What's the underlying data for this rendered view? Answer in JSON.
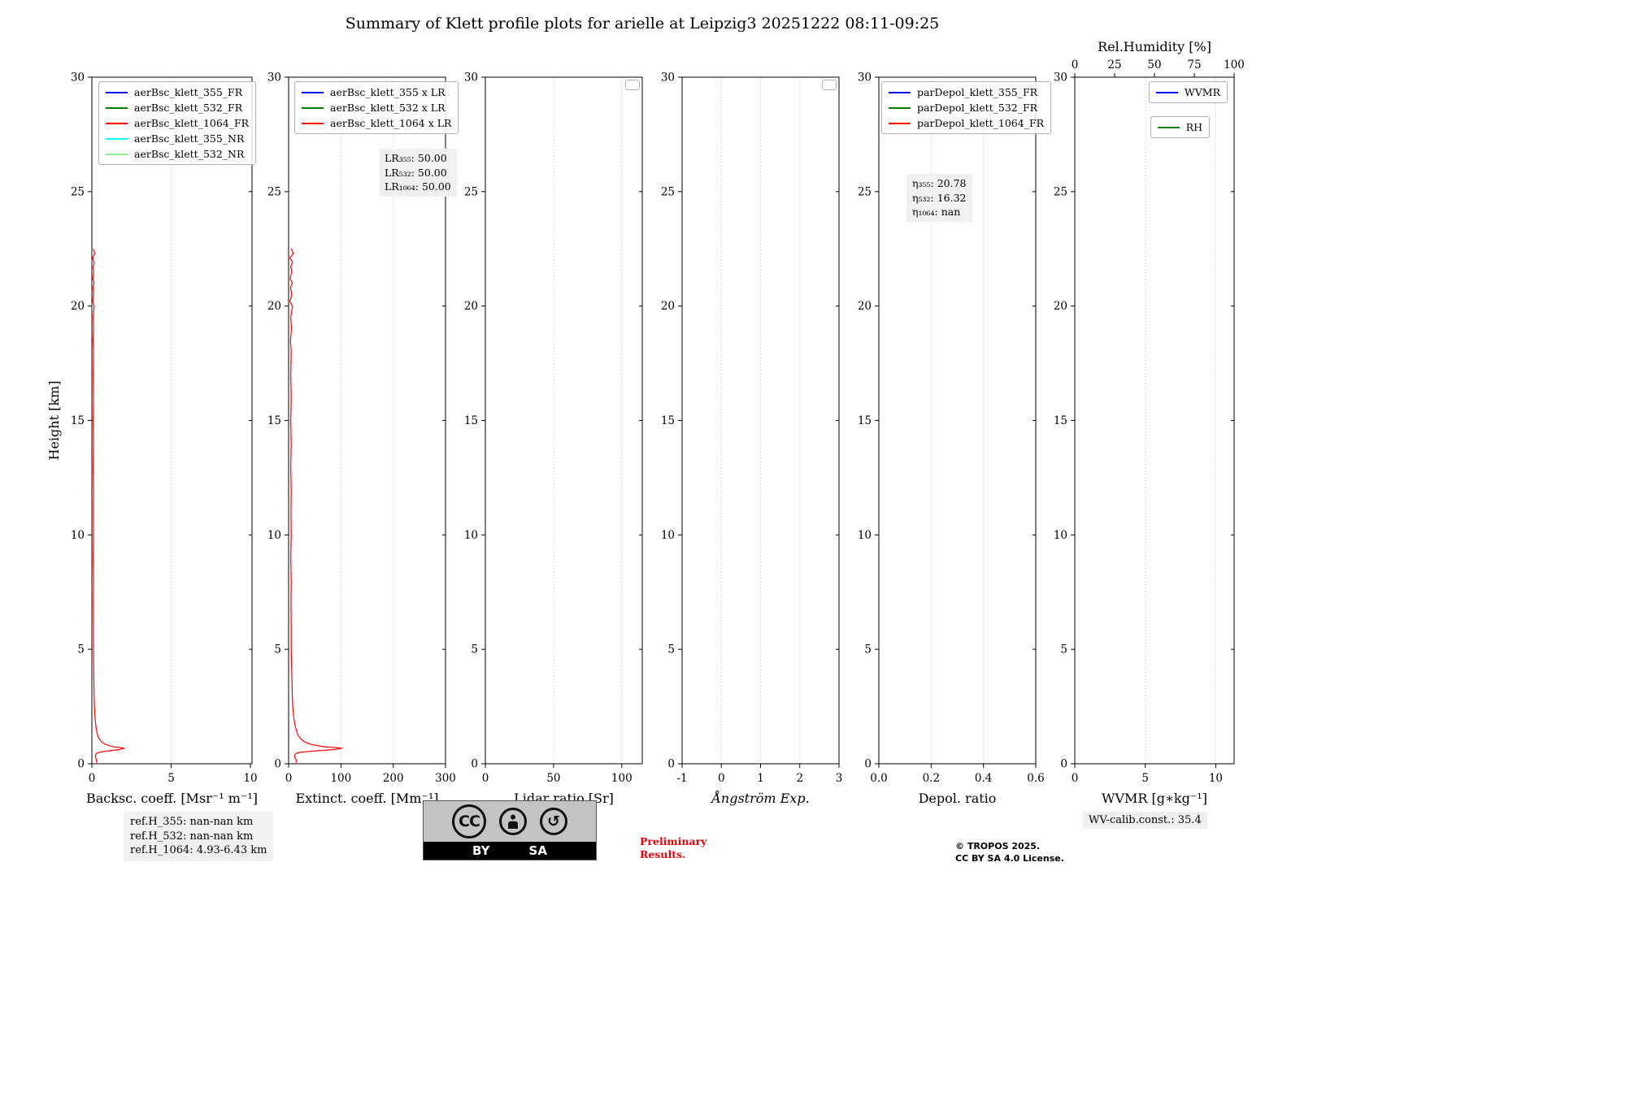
{
  "title": "Summary of Klett profile plots for arielle at Leipzig3 20251222 08:11-09:25",
  "footer": {
    "ref_h_355": "ref.H_355: nan-nan km",
    "ref_h_532": "ref.H_532: nan-nan km",
    "ref_h_1064": "ref.H_1064: 4.93-6.43 km",
    "preliminary_line1": "Preliminary",
    "preliminary_line2": "Results.",
    "copyright_line1": "© TROPOS 2025.",
    "copyright_line2": "CC BY SA 4.0 License.",
    "wv_calib": "WV-calib.const.: 35.4",
    "cc_badge": {
      "cc": "CC",
      "by": "BY",
      "sa": "SA"
    }
  },
  "chart_data": [
    {
      "type": "line",
      "xlabel": "Backsc. coeff. [Msr⁻¹ m⁻¹]",
      "ylabel": "Height [km]",
      "xlim": [
        0,
        10.1
      ],
      "ylim": [
        0,
        30
      ],
      "xticks": [
        0,
        5,
        10
      ],
      "xtick_labels": [
        "0",
        "5",
        "10"
      ],
      "yticks": [
        0,
        5,
        10,
        15,
        20,
        25,
        30
      ],
      "grid": true,
      "legend_boxes": [
        {
          "position": "top-left",
          "entries": [
            {
              "label": "aerBsc_klett_355_FR",
              "color": "#0000ff"
            },
            {
              "label": "aerBsc_klett_532_FR",
              "color": "#008000"
            },
            {
              "label": "aerBsc_klett_1064_FR",
              "color": "#ff0000"
            },
            {
              "label": "aerBsc_klett_355_NR",
              "color": "#00ffff"
            },
            {
              "label": "aerBsc_klett_532_NR",
              "color": "#90ee90"
            }
          ]
        }
      ],
      "series": [
        {
          "name": "aerBsc_klett_1064_FR",
          "color": "#ff0000",
          "points": [
            [
              0.1,
              22.5
            ],
            [
              0.18,
              22.3
            ],
            [
              0.05,
              22.1
            ],
            [
              0.15,
              21.9
            ],
            [
              0.08,
              21.7
            ],
            [
              0.12,
              21.5
            ],
            [
              0.06,
              21.2
            ],
            [
              0.14,
              21.0
            ],
            [
              0.07,
              20.8
            ],
            [
              0.12,
              20.5
            ],
            [
              0.05,
              20.2
            ],
            [
              0.15,
              20.0
            ],
            [
              0.08,
              19.5
            ],
            [
              0.11,
              19.0
            ],
            [
              0.07,
              18.5
            ],
            [
              0.1,
              18.0
            ],
            [
              0.08,
              17.0
            ],
            [
              0.1,
              16.0
            ],
            [
              0.08,
              15.0
            ],
            [
              0.1,
              14.0
            ],
            [
              0.08,
              13.0
            ],
            [
              0.1,
              12.0
            ],
            [
              0.09,
              11.0
            ],
            [
              0.1,
              10.0
            ],
            [
              0.08,
              9.0
            ],
            [
              0.1,
              8.0
            ],
            [
              0.09,
              7.0
            ],
            [
              0.1,
              6.0
            ],
            [
              0.1,
              5.0
            ],
            [
              0.12,
              4.0
            ],
            [
              0.14,
              3.0
            ],
            [
              0.16,
              2.5
            ],
            [
              0.2,
              2.0
            ],
            [
              0.26,
              1.6
            ],
            [
              0.34,
              1.3
            ],
            [
              0.45,
              1.1
            ],
            [
              0.62,
              0.95
            ],
            [
              0.85,
              0.85
            ],
            [
              1.3,
              0.75
            ],
            [
              2.05,
              0.68
            ],
            [
              1.75,
              0.62
            ],
            [
              0.9,
              0.55
            ],
            [
              0.45,
              0.5
            ],
            [
              0.28,
              0.45
            ],
            [
              0.22,
              0.35
            ],
            [
              0.25,
              0.25
            ],
            [
              0.3,
              0.15
            ],
            [
              0.28,
              0.05
            ]
          ]
        }
      ]
    },
    {
      "type": "line",
      "xlabel": "Extinct. coeff. [Mm⁻¹]",
      "xlim": [
        0,
        300
      ],
      "ylim": [
        0,
        30
      ],
      "xticks": [
        0,
        100,
        200,
        300
      ],
      "xtick_labels": [
        "0",
        "100",
        "200",
        "300"
      ],
      "yticks": [
        0,
        5,
        10,
        15,
        20,
        25,
        30
      ],
      "grid": true,
      "legend_boxes": [
        {
          "position": "top-left",
          "entries": [
            {
              "label": "aerBsc_klett_355 x LR",
              "color": "#0000ff"
            },
            {
              "label": "aerBsc_klett_532 x LR",
              "color": "#008000"
            },
            {
              "label": "aerBsc_klett_1064 x LR",
              "color": "#ff0000"
            }
          ]
        }
      ],
      "annotation": {
        "lines": [
          "LR₃₅₅: 50.00",
          "LR₅₃₂: 50.00",
          "LR₁₀₆₄: 50.00"
        ]
      },
      "series": [
        {
          "name": "aerBsc_klett_1064 x LR",
          "color": "#ff0000",
          "points": [
            [
              5,
              22.5
            ],
            [
              9,
              22.3
            ],
            [
              2.5,
              22.1
            ],
            [
              7.5,
              21.9
            ],
            [
              4,
              21.7
            ],
            [
              6,
              21.5
            ],
            [
              3,
              21.2
            ],
            [
              7,
              21.0
            ],
            [
              3.5,
              20.8
            ],
            [
              6,
              20.5
            ],
            [
              2.5,
              20.2
            ],
            [
              7.5,
              20.0
            ],
            [
              4,
              19.5
            ],
            [
              5.5,
              19.0
            ],
            [
              3.5,
              18.5
            ],
            [
              5,
              18.0
            ],
            [
              4,
              17.0
            ],
            [
              5,
              16.0
            ],
            [
              4,
              15.0
            ],
            [
              5,
              14.0
            ],
            [
              4,
              13.0
            ],
            [
              5,
              12.0
            ],
            [
              4.5,
              11.0
            ],
            [
              5,
              10.0
            ],
            [
              4,
              9.0
            ],
            [
              5,
              8.0
            ],
            [
              4.5,
              7.0
            ],
            [
              5,
              6.0
            ],
            [
              5,
              5.0
            ],
            [
              6,
              4.0
            ],
            [
              7,
              3.0
            ],
            [
              8,
              2.5
            ],
            [
              10,
              2.0
            ],
            [
              13,
              1.6
            ],
            [
              17,
              1.3
            ],
            [
              22.5,
              1.1
            ],
            [
              31,
              0.95
            ],
            [
              42.5,
              0.85
            ],
            [
              65,
              0.75
            ],
            [
              102.5,
              0.68
            ],
            [
              87.5,
              0.62
            ],
            [
              45,
              0.55
            ],
            [
              22.5,
              0.5
            ],
            [
              14,
              0.45
            ],
            [
              11,
              0.35
            ],
            [
              12.5,
              0.25
            ],
            [
              15,
              0.15
            ],
            [
              14,
              0.05
            ]
          ]
        }
      ]
    },
    {
      "type": "line",
      "xlabel": "Lidar ratio [Sr]",
      "xlim": [
        0,
        115
      ],
      "ylim": [
        0,
        30
      ],
      "xticks": [
        0,
        50,
        100
      ],
      "xtick_labels": [
        "0",
        "50",
        "100"
      ],
      "yticks": [
        0,
        5,
        10,
        15,
        20,
        25,
        30
      ],
      "grid": true,
      "legend_boxes": [
        {
          "position": "top-right",
          "entries": []
        }
      ],
      "series": []
    },
    {
      "type": "line",
      "xlabel": "Ångström Exp.",
      "xlabel_italic": true,
      "xlim": [
        -1,
        3
      ],
      "ylim": [
        0,
        30
      ],
      "xticks": [
        -1,
        0,
        1,
        2,
        3
      ],
      "xtick_labels": [
        "-1",
        "0",
        "1",
        "2",
        "3"
      ],
      "yticks": [
        0,
        5,
        10,
        15,
        20,
        25,
        30
      ],
      "grid": true,
      "legend_boxes": [
        {
          "position": "top-right",
          "entries": []
        }
      ],
      "series": []
    },
    {
      "type": "line",
      "xlabel": "Depol. ratio",
      "xlim": [
        0,
        0.6
      ],
      "ylim": [
        0,
        30
      ],
      "xticks": [
        0,
        0.2,
        0.4,
        0.6
      ],
      "xtick_labels": [
        "0.0",
        "0.2",
        "0.4",
        "0.6"
      ],
      "yticks": [
        0,
        5,
        10,
        15,
        20,
        25,
        30
      ],
      "grid": true,
      "legend_boxes": [
        {
          "position": "top-left",
          "entries": [
            {
              "label": "parDepol_klett_355_FR",
              "color": "#0000ff"
            },
            {
              "label": "parDepol_klett_532_FR",
              "color": "#008000"
            },
            {
              "label": "parDepol_klett_1064_FR",
              "color": "#ff0000"
            }
          ]
        }
      ],
      "annotation": {
        "lines": [
          "η₃₅₅: 20.78",
          "η₅₃₂: 16.32",
          "η₁₀₆₄: nan"
        ]
      },
      "series": []
    },
    {
      "type": "line",
      "xlabel": "WVMR [g∗kg⁻¹]",
      "xlim": [
        0,
        11.3
      ],
      "ylim": [
        0,
        30
      ],
      "xticks": [
        0,
        5,
        10
      ],
      "xtick_labels": [
        "0",
        "5",
        "10"
      ],
      "yticks": [
        0,
        5,
        10,
        15,
        20,
        25,
        30
      ],
      "grid": true,
      "top_axis": {
        "label": "Rel.Humidity [%]",
        "xlim": [
          0,
          100
        ],
        "xticks": [
          0,
          25,
          50,
          75,
          100
        ],
        "xtick_labels": [
          "0",
          "25",
          "50",
          "75",
          "100"
        ]
      },
      "legend_boxes": [
        {
          "position": "top-right",
          "entries": [
            {
              "label": "WVMR",
              "color": "#0000ff"
            }
          ]
        },
        {
          "position": "top-right",
          "entries": [
            {
              "label": "RH",
              "color": "#008000"
            }
          ]
        }
      ],
      "series": []
    }
  ]
}
